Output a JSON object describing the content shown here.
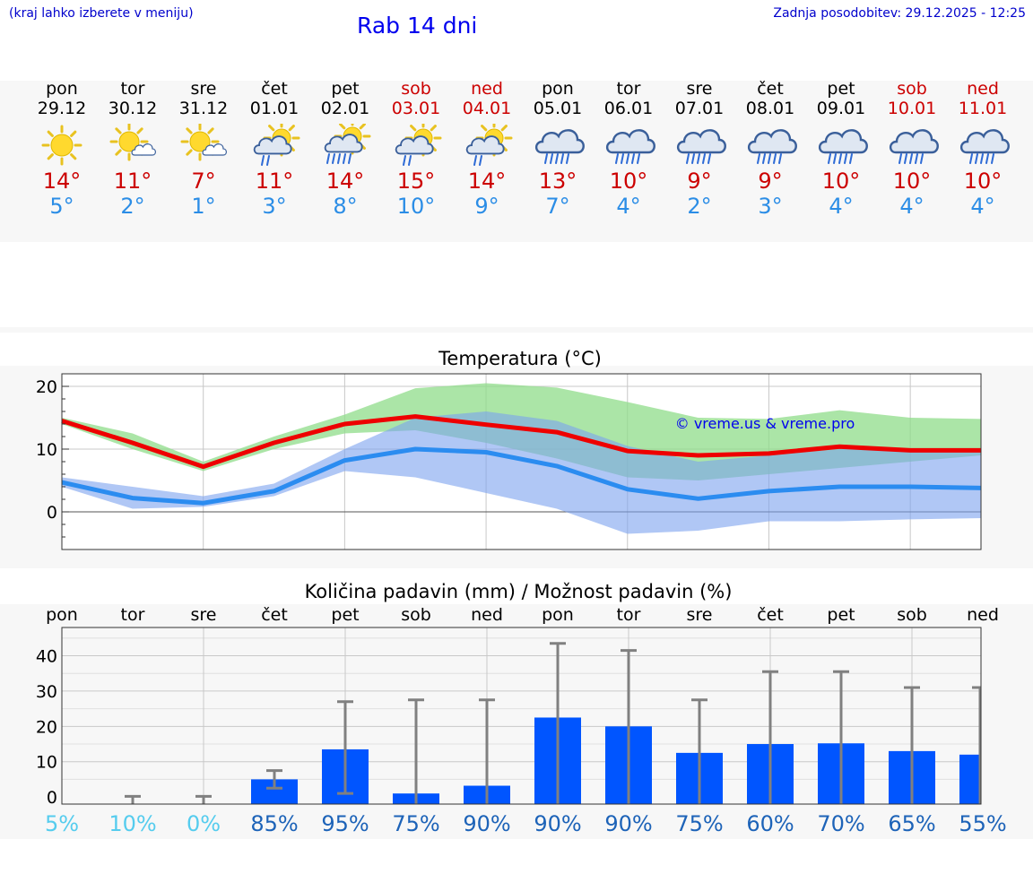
{
  "header": {
    "location_hint": "(kraj lahko izberete v meniju)",
    "title": "Rab 14 dni",
    "last_update": "Zadnja posodobitev: 29.12.2025 - 12:25"
  },
  "days": [
    {
      "name": "pon",
      "date": "29.12",
      "tmax": "14°",
      "tmin": "5°",
      "icon": "sunny-icon",
      "weekend": false
    },
    {
      "name": "tor",
      "date": "30.12",
      "tmax": "11°",
      "tmin": "2°",
      "icon": "sun-cloud-icon",
      "weekend": false
    },
    {
      "name": "sre",
      "date": "31.12",
      "tmax": "7°",
      "tmin": "1°",
      "icon": "sun-cloud-icon",
      "weekend": false
    },
    {
      "name": "čet",
      "date": "01.01",
      "tmax": "11°",
      "tmin": "3°",
      "icon": "sun-rain-icon",
      "weekend": false
    },
    {
      "name": "pet",
      "date": "02.01",
      "tmax": "14°",
      "tmin": "8°",
      "icon": "sun-heavy-rain-icon",
      "weekend": false
    },
    {
      "name": "sob",
      "date": "03.01",
      "tmax": "15°",
      "tmin": "10°",
      "icon": "sun-rain-icon",
      "weekend": true
    },
    {
      "name": "ned",
      "date": "04.01",
      "tmax": "14°",
      "tmin": "9°",
      "icon": "sun-rain-icon",
      "weekend": true
    },
    {
      "name": "pon",
      "date": "05.01",
      "tmax": "13°",
      "tmin": "7°",
      "icon": "rain-cloud-icon",
      "weekend": false
    },
    {
      "name": "tor",
      "date": "06.01",
      "tmax": "10°",
      "tmin": "4°",
      "icon": "rain-cloud-icon",
      "weekend": false
    },
    {
      "name": "sre",
      "date": "07.01",
      "tmax": "9°",
      "tmin": "2°",
      "icon": "rain-cloud-icon",
      "weekend": false
    },
    {
      "name": "čet",
      "date": "08.01",
      "tmax": "9°",
      "tmin": "3°",
      "icon": "rain-cloud-icon",
      "weekend": false
    },
    {
      "name": "pet",
      "date": "09.01",
      "tmax": "10°",
      "tmin": "4°",
      "icon": "rain-cloud-icon",
      "weekend": false
    },
    {
      "name": "sob",
      "date": "10.01",
      "tmax": "10°",
      "tmin": "4°",
      "icon": "rain-cloud-icon",
      "weekend": true
    },
    {
      "name": "ned",
      "date": "11.01",
      "tmax": "10°",
      "tmin": "4°",
      "icon": "rain-cloud-icon",
      "weekend": true
    }
  ],
  "chart_data": [
    {
      "type": "line",
      "title": "Temperatura (°C)",
      "watermark": "© vreme.us & vreme.pro",
      "x": [
        0,
        1,
        2,
        3,
        4,
        5,
        6,
        7,
        8,
        9,
        10,
        11,
        12,
        13
      ],
      "xlim": [
        0,
        13
      ],
      "ylim": [
        -6,
        22
      ],
      "yticks": [
        0,
        10,
        20
      ],
      "colors": {
        "max_line": "#ee0000",
        "min_line": "#2b8cf0",
        "max_band": "#8fdc8a",
        "min_band": "#7ba2ee"
      },
      "series": [
        {
          "name": "max",
          "values": [
            14.5,
            11,
            7.2,
            11,
            14,
            15.2,
            13.9,
            12.7,
            9.7,
            9,
            9.3,
            10.4,
            9.8,
            9.8
          ]
        },
        {
          "name": "min",
          "values": [
            4.7,
            2.2,
            1.4,
            3.3,
            8.2,
            10,
            9.5,
            7.3,
            3.6,
            2.1,
            3.3,
            4,
            4,
            3.8
          ]
        }
      ],
      "bands": [
        {
          "name": "max_range",
          "upper": [
            15,
            12.5,
            8,
            12,
            15.5,
            19.7,
            20.5,
            19.8,
            17.5,
            15,
            14.8,
            16.2,
            15,
            14.8
          ],
          "lower": [
            14,
            10,
            6.5,
            10,
            12.5,
            13,
            11,
            8.5,
            5.5,
            5,
            6,
            7,
            8,
            9
          ]
        },
        {
          "name": "min_range",
          "upper": [
            5.5,
            4,
            2.5,
            4.5,
            10,
            15,
            16,
            14.5,
            10.5,
            8,
            9,
            10,
            10,
            9.5
          ],
          "lower": [
            4,
            0.5,
            0.8,
            2.5,
            6.5,
            5.5,
            3,
            0.5,
            -3.5,
            -3,
            -1.5,
            -1.5,
            -1.2,
            -1
          ]
        }
      ]
    },
    {
      "type": "bar",
      "title": "Količina padavin (mm) / Možnost padavin (%)",
      "categories": [
        "pon",
        "tor",
        "sre",
        "čet",
        "pet",
        "sob",
        "ned",
        "pon",
        "tor",
        "sre",
        "čet",
        "pet",
        "sob",
        "ned"
      ],
      "values": [
        0,
        0,
        0,
        5,
        13.5,
        1,
        3.2,
        22.5,
        20,
        12.5,
        15,
        15.2,
        13,
        12
      ],
      "error_low": [
        0,
        0,
        0,
        2.5,
        1,
        0,
        0,
        0,
        0,
        0,
        0,
        0,
        0,
        0
      ],
      "error_high": [
        0,
        0.2,
        0.2,
        7.5,
        27,
        27.5,
        27.5,
        43.5,
        41.5,
        27.5,
        35.5,
        35.5,
        31,
        31
      ],
      "probability": [
        "5%",
        "10%",
        "0%",
        "85%",
        "95%",
        "75%",
        "90%",
        "90%",
        "90%",
        "75%",
        "60%",
        "70%",
        "65%",
        "55%"
      ],
      "yticks": [
        0,
        10,
        20,
        30,
        40
      ],
      "ylim": [
        -2,
        48
      ],
      "colors": {
        "bar": "#0055ff",
        "error": "#808080",
        "prob_low": "#55ccee",
        "prob_high": "#1d63b8"
      }
    }
  ]
}
